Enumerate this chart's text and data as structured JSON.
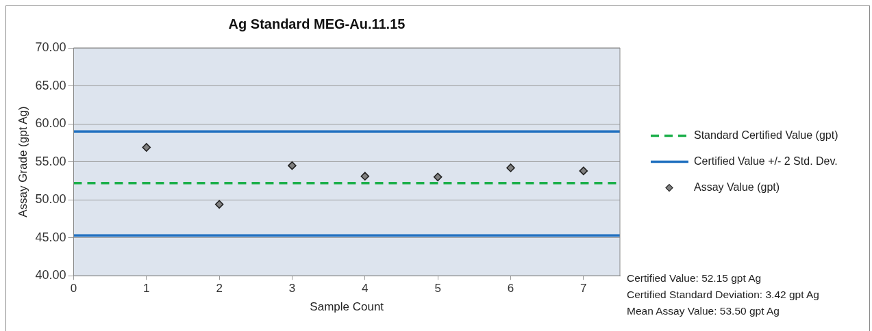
{
  "chart_data": {
    "type": "scatter",
    "title": "Ag Standard MEG-Au.11.15",
    "xlabel": "Sample Count",
    "ylabel": "Assay Grade (gpt Ag)",
    "xlim": [
      0,
      7.5
    ],
    "xticks": [
      0,
      1,
      2,
      3,
      4,
      5,
      6,
      7
    ],
    "ylim": [
      40,
      70
    ],
    "yticks": [
      {
        "value": 40,
        "label": "40.00"
      },
      {
        "value": 45,
        "label": "45.00"
      },
      {
        "value": 50,
        "label": "50.00"
      },
      {
        "value": 55,
        "label": "55.00"
      },
      {
        "value": 60,
        "label": "60.00"
      },
      {
        "value": 65,
        "label": "65.00"
      },
      {
        "value": 70,
        "label": "70.00"
      }
    ],
    "grid": "y",
    "legend": "right",
    "series": [
      {
        "name": "Standard Certified Value (gpt)",
        "type": "line",
        "marker": "none",
        "line_style": "dashed",
        "color": "#1db04b",
        "x": [
          0,
          7.5
        ],
        "values": [
          52.2,
          52.2
        ]
      },
      {
        "name": "Certified Value +/- 2 Std. Dev.",
        "type": "line",
        "marker": "none",
        "line_style": "solid",
        "color": "#1f6fbf",
        "x": [
          0,
          7.5
        ],
        "values": [
          59.0,
          59.0
        ]
      },
      {
        "type": "line",
        "marker": "none",
        "line_style": "solid",
        "color": "#1f6fbf",
        "x": [
          0,
          7.5
        ],
        "values": [
          45.3,
          45.3
        ]
      },
      {
        "name": "Assay Value (gpt)",
        "marker": "diamond",
        "color": "#808080",
        "x": [
          1,
          2,
          3,
          4,
          5,
          6,
          7
        ],
        "values": [
          56.9,
          49.4,
          54.5,
          53.1,
          53.0,
          54.2,
          53.8
        ]
      }
    ],
    "annotations": [
      "Certified Value: 52.15 gpt Ag",
      "Certified Standard Deviation: 3.42 gpt Ag",
      "Mean Assay Value: 53.50 gpt Ag"
    ]
  }
}
